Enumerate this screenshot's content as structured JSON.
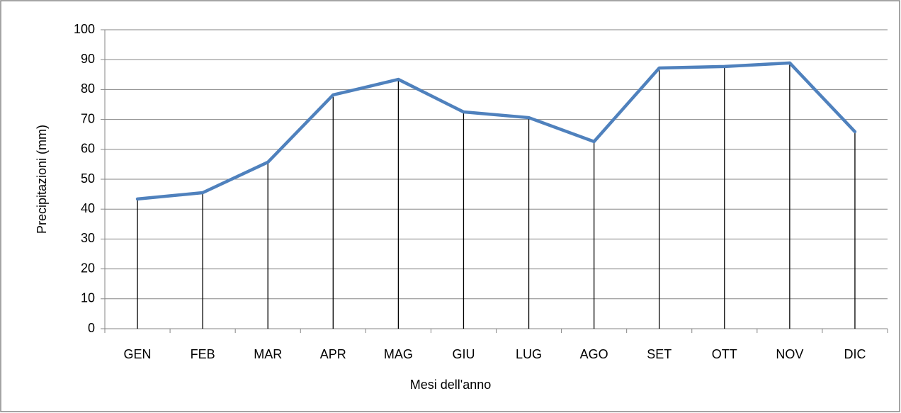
{
  "chart_data": {
    "type": "line",
    "categories": [
      "GEN",
      "FEB",
      "MAR",
      "APR",
      "MAG",
      "GIU",
      "LUG",
      "AGO",
      "SET",
      "OTT",
      "NOV",
      "DIC"
    ],
    "series": [
      {
        "name": "Precipitazioni",
        "color": "#4f81bd",
        "values": [
          43.4,
          45.5,
          55.7,
          78.2,
          83.4,
          72.5,
          70.6,
          62.6,
          87.2,
          87.7,
          88.9,
          65.9
        ]
      }
    ],
    "drop_lines": true,
    "xlabel": "Mesi dell'anno",
    "ylabel": "Precipitazioni (mm)",
    "ylim": [
      0,
      100
    ],
    "yticks": [
      0,
      10,
      20,
      30,
      40,
      50,
      60,
      70,
      80,
      90,
      100
    ],
    "grid": true
  }
}
